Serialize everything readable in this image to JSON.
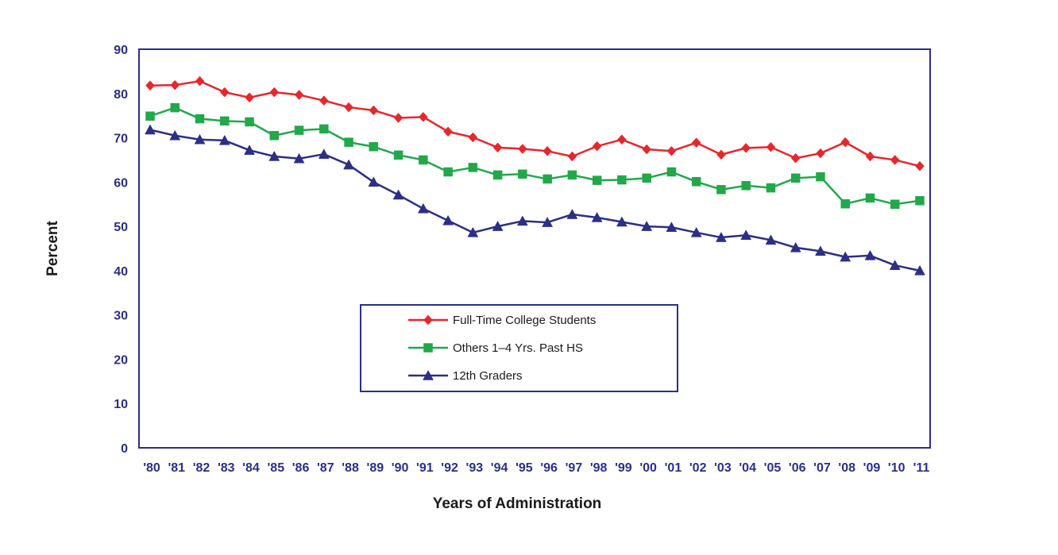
{
  "chart_data": {
    "type": "line",
    "title": "",
    "xlabel": "Years of Administration",
    "ylabel": "Percent",
    "ylim": [
      0,
      90
    ],
    "yticks": [
      0,
      10,
      20,
      30,
      40,
      50,
      60,
      70,
      80,
      90
    ],
    "grid": false,
    "legend_position": "center",
    "categories": [
      "'80",
      "'81",
      "'82",
      "'83",
      "'84",
      "'85",
      "'86",
      "'87",
      "'88",
      "'89",
      "'90",
      "'91",
      "'92",
      "'93",
      "'94",
      "'95",
      "'96",
      "'97",
      "'98",
      "'99",
      "'00",
      "'01",
      "'02",
      "'03",
      "'04",
      "'05",
      "'06",
      "'07",
      "'08",
      "'09",
      "'10",
      "'11"
    ],
    "series": [
      {
        "name": "Full-Time College Students",
        "color": "#e8262b",
        "marker": "diamond",
        "values": [
          81.8,
          81.9,
          82.8,
          80.3,
          79.1,
          80.3,
          79.7,
          78.4,
          76.9,
          76.2,
          74.5,
          74.7,
          71.4,
          70.1,
          67.8,
          67.5,
          67.0,
          65.8,
          68.1,
          69.6,
          67.4,
          67.0,
          68.9,
          66.2,
          67.7,
          67.9,
          65.4,
          66.5,
          69.0,
          65.8,
          65.0,
          63.6
        ]
      },
      {
        "name": "Others 1–4 Yrs. Past HS",
        "color": "#21a84a",
        "marker": "square",
        "values": [
          74.9,
          76.8,
          74.3,
          73.8,
          73.6,
          70.5,
          71.7,
          72.0,
          69.0,
          68.0,
          66.1,
          65.0,
          62.3,
          63.3,
          61.6,
          61.8,
          60.7,
          61.6,
          60.4,
          60.5,
          60.9,
          62.3,
          60.1,
          58.3,
          59.2,
          58.7,
          60.9,
          61.2,
          55.1,
          56.4,
          55.0,
          55.8
        ]
      },
      {
        "name": "12th Graders",
        "color": "#2b2f86",
        "marker": "triangle",
        "values": [
          71.8,
          70.5,
          69.6,
          69.4,
          67.2,
          65.8,
          65.3,
          66.3,
          63.9,
          60.0,
          57.1,
          54.0,
          51.3,
          48.6,
          50.0,
          51.2,
          50.9,
          52.7,
          52.0,
          51.0,
          50.0,
          49.8,
          48.6,
          47.5,
          48.0,
          46.9,
          45.2,
          44.4,
          43.1,
          43.4,
          41.2,
          40.0
        ]
      }
    ]
  }
}
